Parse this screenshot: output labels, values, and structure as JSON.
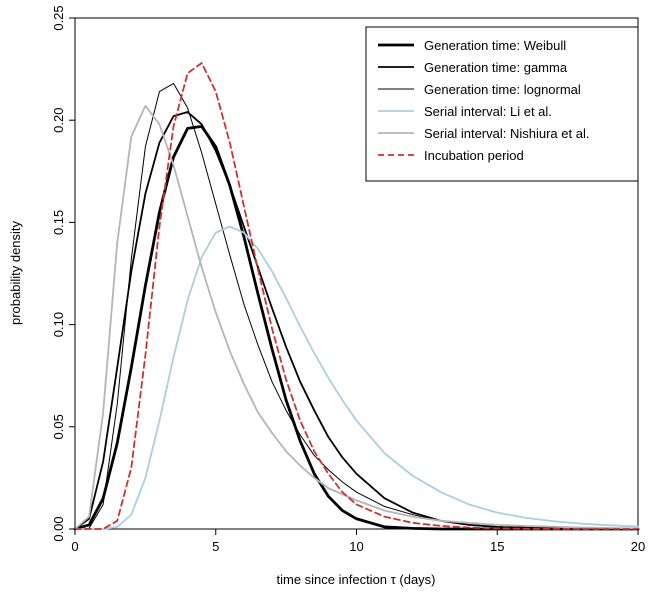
{
  "chart_data": {
    "type": "line",
    "xlabel": "time since infection τ (days)",
    "ylabel": "probability density",
    "xlim": [
      0,
      20
    ],
    "ylim": [
      0,
      0.25
    ],
    "x_ticks": [
      0,
      5,
      10,
      15,
      20
    ],
    "y_ticks": [
      0.0,
      0.05,
      0.1,
      0.15,
      0.2,
      0.25
    ],
    "x_tick_labels": [
      "0",
      "5",
      "10",
      "15",
      "20"
    ],
    "y_tick_labels": [
      "0.00",
      "0.05",
      "0.10",
      "0.15",
      "0.20",
      "0.25"
    ],
    "grid": false,
    "legend_position": "top-right",
    "series": [
      {
        "name": "Generation time: Weibull",
        "color": "#000000",
        "line_style": "solid",
        "line_weight": "thick",
        "x": [
          0,
          0.5,
          1,
          1.5,
          2,
          2.5,
          3,
          3.5,
          4,
          4.5,
          5,
          5.5,
          6,
          6.5,
          7,
          7.5,
          8,
          8.5,
          9,
          9.5,
          10,
          11,
          12,
          13,
          14,
          15,
          16,
          18,
          20
        ],
        "y": [
          0,
          0.002,
          0.015,
          0.042,
          0.079,
          0.119,
          0.155,
          0.182,
          0.196,
          0.197,
          0.187,
          0.168,
          0.143,
          0.115,
          0.088,
          0.063,
          0.043,
          0.027,
          0.016,
          0.009,
          0.005,
          0.001,
          0.0003,
          0,
          0,
          0,
          0,
          0,
          0
        ]
      },
      {
        "name": "Generation time: gamma",
        "color": "#000000",
        "line_style": "solid",
        "line_weight": "medium",
        "x": [
          0,
          0.5,
          1,
          1.5,
          2,
          2.5,
          3,
          3.5,
          4,
          4.5,
          5,
          5.5,
          6,
          6.5,
          7,
          7.5,
          8,
          8.5,
          9,
          9.5,
          10,
          11,
          12,
          13,
          14,
          15,
          16,
          18,
          20
        ],
        "y": [
          0,
          0.005,
          0.033,
          0.079,
          0.126,
          0.164,
          0.189,
          0.202,
          0.204,
          0.198,
          0.185,
          0.168,
          0.148,
          0.128,
          0.108,
          0.089,
          0.072,
          0.058,
          0.045,
          0.035,
          0.027,
          0.015,
          0.008,
          0.004,
          0.002,
          0.001,
          0.0005,
          0.0001,
          0
        ]
      },
      {
        "name": "Generation time: lognormal",
        "color": "#000000",
        "line_style": "solid",
        "line_weight": "thin",
        "x": [
          0,
          0.5,
          1,
          1.5,
          2,
          2.5,
          3,
          3.5,
          4,
          4.5,
          5,
          5.5,
          6,
          6.5,
          7,
          7.5,
          8,
          8.5,
          9,
          9.5,
          10,
          11,
          12,
          13,
          14,
          15,
          16,
          18,
          20
        ],
        "y": [
          0,
          0.0003,
          0.012,
          0.061,
          0.132,
          0.187,
          0.214,
          0.218,
          0.206,
          0.184,
          0.159,
          0.134,
          0.11,
          0.09,
          0.072,
          0.058,
          0.046,
          0.036,
          0.029,
          0.023,
          0.018,
          0.011,
          0.007,
          0.004,
          0.003,
          0.002,
          0.001,
          0.0005,
          0.0002
        ]
      },
      {
        "name": "Serial interval: Li et al.",
        "color": "#a9cfe0",
        "line_style": "solid",
        "line_weight": "medium",
        "x": [
          0,
          1,
          1.5,
          2,
          2.5,
          3,
          3.5,
          4,
          4.5,
          5,
          5.5,
          6,
          6.5,
          7,
          7.5,
          8,
          8.5,
          9,
          9.5,
          10,
          11,
          12,
          13,
          14,
          15,
          16,
          17,
          18,
          19,
          20
        ],
        "y": [
          0,
          0,
          0.001,
          0.007,
          0.025,
          0.053,
          0.084,
          0.112,
          0.133,
          0.145,
          0.148,
          0.145,
          0.137,
          0.126,
          0.113,
          0.099,
          0.086,
          0.074,
          0.063,
          0.053,
          0.037,
          0.026,
          0.018,
          0.012,
          0.008,
          0.0055,
          0.0038,
          0.0026,
          0.0018,
          0.0012
        ]
      },
      {
        "name": "Serial interval: Nishiura et al.",
        "color": "#b5b5b5",
        "line_style": "solid",
        "line_weight": "medium",
        "x": [
          0,
          0.5,
          1,
          1.5,
          2,
          2.5,
          3,
          3.5,
          4,
          4.5,
          5,
          5.5,
          6,
          6.5,
          7,
          7.5,
          8,
          8.5,
          9,
          9.5,
          10,
          11,
          12,
          13,
          14,
          15,
          16,
          18,
          20
        ],
        "y": [
          0,
          0.006,
          0.057,
          0.14,
          0.192,
          0.207,
          0.198,
          0.178,
          0.153,
          0.128,
          0.106,
          0.087,
          0.071,
          0.057,
          0.047,
          0.038,
          0.031,
          0.025,
          0.02,
          0.017,
          0.014,
          0.009,
          0.006,
          0.004,
          0.003,
          0.002,
          0.0015,
          0.0007,
          0.0003
        ]
      },
      {
        "name": "Incubation period",
        "color": "#d0312d",
        "line_style": "dashed",
        "line_weight": "medium",
        "x": [
          0,
          1,
          1.5,
          2,
          2.5,
          3,
          3.5,
          4,
          4.5,
          5,
          5.5,
          6,
          6.5,
          7,
          7.5,
          8,
          8.5,
          9,
          9.5,
          10,
          11,
          12,
          13,
          14,
          15,
          16,
          18,
          20
        ],
        "y": [
          0,
          0,
          0.004,
          0.03,
          0.085,
          0.148,
          0.197,
          0.223,
          0.228,
          0.214,
          0.189,
          0.158,
          0.127,
          0.098,
          0.073,
          0.053,
          0.038,
          0.027,
          0.018,
          0.012,
          0.006,
          0.003,
          0.0015,
          0.0007,
          0.0003,
          0.0001,
          0,
          0
        ]
      }
    ]
  }
}
